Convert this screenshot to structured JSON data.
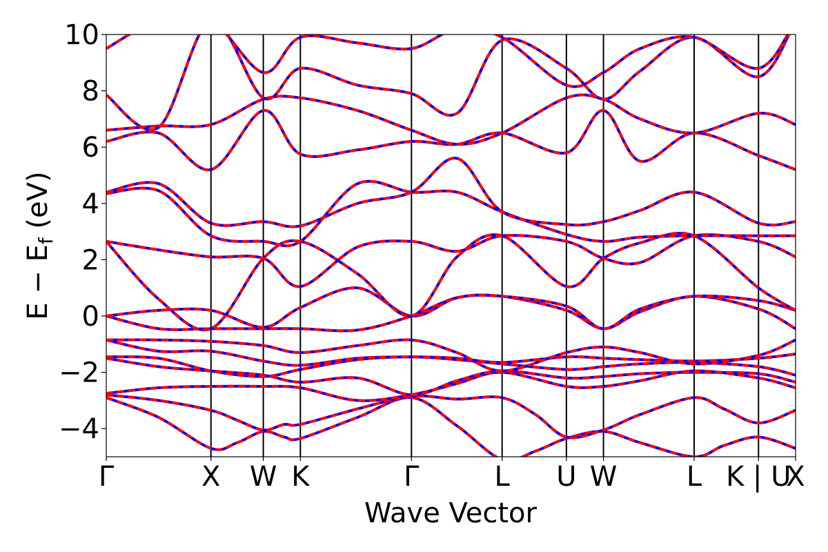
{
  "chart_data": {
    "type": "line",
    "title": "",
    "xlabel": "Wave Vector",
    "ylabel": "E − E",
    "ylabel_sub": "f",
    "ylabel_unit": " (eV)",
    "ylim": [
      -5,
      10
    ],
    "yticks": [
      10,
      8,
      6,
      4,
      2,
      0,
      -2,
      -4
    ],
    "ytick_labels": [
      "10",
      "8",
      "6",
      "4",
      "2",
      "0",
      "−2",
      "−4"
    ],
    "kpath": {
      "labels": [
        "Γ",
        "X",
        "W",
        "K",
        "Γ",
        "L",
        "U",
        "W",
        "L",
        "K | U",
        "X"
      ],
      "k": [
        0,
        1,
        1.5,
        1.854,
        2.915,
        3.781,
        4.395,
        4.749,
        5.615,
        6.23,
        6.584
      ]
    },
    "style": {
      "line_red": "#ff0000",
      "line_blue": "#0000ff",
      "vline": "#000000"
    },
    "series": [
      {
        "x": [
          0,
          0.5,
          1,
          1.25,
          1.5,
          1.7,
          1.854,
          2.4,
          2.915,
          3.35,
          3.781,
          4.1,
          4.395,
          4.749,
          5.1,
          5.615,
          5.9,
          6.23,
          6.584
        ],
        "y": [
          -2.9,
          -3.6,
          -4.7,
          -4.5,
          -4.1,
          -4.3,
          -4.35,
          -3.6,
          -2.9,
          -3.9,
          -5.1,
          -4.8,
          -4.35,
          -4.1,
          -4.5,
          -5.0,
          -4.6,
          -4.3,
          -4.7
        ]
      },
      {
        "x": [
          0,
          0.5,
          1,
          1.25,
          1.5,
          1.7,
          1.854,
          2.4,
          2.915,
          3.35,
          3.781,
          4.1,
          4.395,
          4.749,
          5.1,
          5.615,
          5.9,
          6.23,
          6.584
        ],
        "y": [
          -2.8,
          -3.0,
          -3.35,
          -3.7,
          -4.05,
          -3.85,
          -3.85,
          -3.3,
          -2.85,
          -2.95,
          -2.9,
          -3.5,
          -4.3,
          -4.05,
          -3.5,
          -2.9,
          -3.3,
          -3.8,
          -3.35
        ]
      },
      {
        "x": [
          0,
          0.5,
          1,
          1.5,
          1.854,
          2.4,
          2.915,
          3.35,
          3.781,
          4.395,
          4.749,
          5.1,
          5.615,
          6.23,
          6.584
        ],
        "y": [
          -2.75,
          -2.55,
          -2.5,
          -2.5,
          -2.55,
          -3.0,
          -2.8,
          -2.4,
          -2.0,
          -2.5,
          -2.5,
          -2.3,
          -1.95,
          -2.2,
          -2.55
        ]
      },
      {
        "x": [
          0,
          0.5,
          1,
          1.5,
          1.854,
          2.4,
          2.915,
          3.35,
          3.781,
          4.395,
          4.749,
          5.1,
          5.615,
          6.23,
          6.584
        ],
        "y": [
          -1.5,
          -1.8,
          -1.95,
          -2.1,
          -2.35,
          -2.2,
          -2.8,
          -2.3,
          -1.95,
          -2.2,
          -2.15,
          -2.05,
          -2.0,
          -2.05,
          -2.35
        ]
      },
      {
        "x": [
          0,
          0.5,
          1,
          1.5,
          1.854,
          2.4,
          2.915,
          3.35,
          3.781,
          4.395,
          4.749,
          5.1,
          5.615,
          6.23,
          6.584
        ],
        "y": [
          -1.45,
          -1.5,
          -1.95,
          -2.15,
          -1.9,
          -1.55,
          -1.45,
          -1.55,
          -1.7,
          -1.9,
          -1.8,
          -1.7,
          -1.65,
          -1.8,
          -2.1
        ]
      },
      {
        "x": [
          0,
          0.5,
          1,
          1.5,
          1.854,
          2.4,
          2.915,
          3.35,
          3.781,
          4.395,
          4.749,
          5.1,
          5.615,
          6.23,
          6.584
        ],
        "y": [
          -0.85,
          -1.25,
          -1.25,
          -1.6,
          -1.75,
          -1.5,
          -1.45,
          -1.5,
          -1.65,
          -1.45,
          -1.5,
          -1.55,
          -1.6,
          -1.5,
          -1.35
        ]
      },
      {
        "x": [
          0,
          0.5,
          1,
          1.5,
          1.854,
          2.4,
          2.915,
          3.35,
          3.781,
          4.395,
          4.749,
          5.1,
          5.615,
          6.23,
          6.584
        ],
        "y": [
          -0.85,
          -0.85,
          -0.9,
          -1.05,
          -1.3,
          -1.05,
          -0.85,
          -1.3,
          -1.95,
          -1.3,
          -1.1,
          -1.3,
          -1.7,
          -1.4,
          -0.85
        ]
      },
      {
        "x": [
          0,
          0.5,
          1,
          1.5,
          1.854,
          2.4,
          2.915,
          3.35,
          3.781,
          4.395,
          4.749,
          5.1,
          5.615,
          6.23,
          6.584
        ],
        "y": [
          0,
          -0.45,
          -0.45,
          -0.45,
          -0.45,
          -0.5,
          0,
          0.65,
          0.7,
          0.2,
          -0.45,
          0.15,
          0.7,
          0.25,
          -0.45
        ]
      },
      {
        "x": [
          0,
          0.5,
          1,
          1.5,
          1.854,
          2.4,
          2.915,
          3.35,
          3.781,
          4.395,
          4.749,
          5.1,
          5.615,
          6.23,
          6.584
        ],
        "y": [
          0,
          0.2,
          0.2,
          -0.4,
          0.3,
          1.0,
          0,
          0.65,
          0.7,
          0.35,
          -0.45,
          0.25,
          0.7,
          0.55,
          0.2
        ]
      },
      {
        "x": [
          0,
          0.5,
          1,
          1.5,
          1.854,
          2.4,
          2.915,
          3.35,
          3.781,
          4.395,
          4.749,
          5.1,
          5.615,
          6.23,
          6.584
        ],
        "y": [
          2.65,
          0.6,
          -0.45,
          2.05,
          2.65,
          1.5,
          0,
          2.1,
          2.85,
          1.05,
          2.05,
          2.6,
          2.85,
          1.0,
          0.2
        ]
      },
      {
        "x": [
          0,
          0.5,
          1,
          1.5,
          1.854,
          2.4,
          2.915,
          3.35,
          3.781,
          4.395,
          4.749,
          5.1,
          5.615,
          6.23,
          6.584
        ],
        "y": [
          2.65,
          2.35,
          2.1,
          2.05,
          1.05,
          2.45,
          2.65,
          2.3,
          2.85,
          2.65,
          2.05,
          1.9,
          2.85,
          2.65,
          2.1
        ]
      },
      {
        "x": [
          0,
          0.5,
          1,
          1.5,
          1.854,
          2.4,
          2.915,
          3.35,
          3.781,
          4.395,
          4.749,
          5.1,
          5.615,
          6.23,
          6.584
        ],
        "y": [
          4.35,
          4.45,
          2.85,
          2.65,
          2.65,
          4.7,
          4.4,
          4.4,
          3.7,
          2.9,
          2.65,
          2.8,
          2.85,
          2.85,
          2.85
        ]
      },
      {
        "x": [
          0,
          0.5,
          1,
          1.5,
          1.854,
          2.4,
          2.915,
          3.35,
          3.781,
          4.395,
          4.749,
          5.1,
          5.615,
          6.23,
          6.584
        ],
        "y": [
          4.4,
          4.7,
          3.3,
          3.35,
          3.2,
          4.0,
          4.4,
          5.6,
          3.7,
          3.25,
          3.35,
          3.75,
          4.4,
          3.3,
          3.35
        ]
      },
      {
        "x": [
          0,
          0.5,
          1,
          1.5,
          1.854,
          2.4,
          2.915,
          3.35,
          3.781,
          4.395,
          4.749,
          5.1,
          5.615,
          6.23,
          6.584
        ],
        "y": [
          6.2,
          6.5,
          5.2,
          7.3,
          5.75,
          5.9,
          6.2,
          6.1,
          6.5,
          5.8,
          7.3,
          5.5,
          6.5,
          5.7,
          5.2
        ]
      },
      {
        "x": [
          0,
          0.5,
          1,
          1.5,
          1.854,
          2.4,
          2.915,
          3.35,
          3.781,
          4.395,
          4.749,
          5.1,
          5.615,
          6.23,
          6.584
        ],
        "y": [
          6.6,
          6.75,
          6.8,
          7.7,
          7.75,
          7.3,
          6.6,
          6.1,
          6.5,
          7.75,
          7.7,
          7.0,
          6.5,
          7.2,
          6.8
        ]
      },
      {
        "x": [
          0,
          0.5,
          1,
          1.5,
          1.854,
          2.4,
          2.915,
          3.35,
          3.781,
          4.395,
          4.749,
          5.1,
          5.615,
          6.23,
          6.584
        ],
        "y": [
          7.85,
          6.7,
          10.5,
          7.75,
          8.8,
          8.2,
          7.9,
          7.2,
          9.8,
          8.8,
          7.7,
          8.7,
          9.9,
          8.5,
          10.5
        ]
      },
      {
        "x": [
          0,
          0.5,
          1,
          1.5,
          1.854,
          2.4,
          2.915,
          3.35,
          3.781,
          4.395,
          4.749,
          5.1,
          5.615,
          6.23,
          6.584
        ],
        "y": [
          9.5,
          10.5,
          10.5,
          8.65,
          9.9,
          9.7,
          9.5,
          10.2,
          9.9,
          8.2,
          8.65,
          9.5,
          9.9,
          8.8,
          10.5
        ]
      }
    ]
  }
}
